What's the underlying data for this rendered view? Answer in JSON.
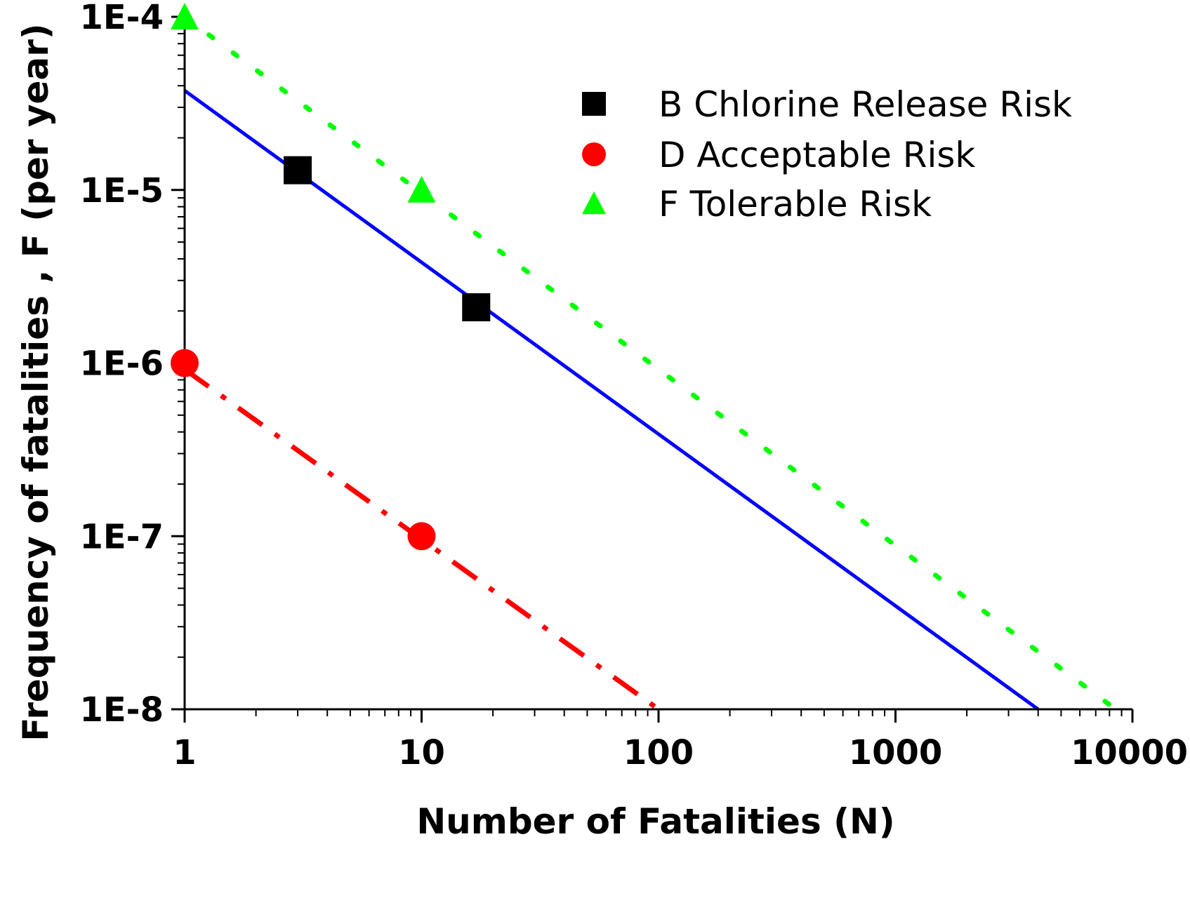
{
  "chart_data": {
    "type": "scatter",
    "x_scale": "log",
    "y_scale": "log",
    "xlabel": "Number of Fatalities (N)",
    "ylabel": "Frequency of fatalities , F (per year)",
    "xlim": [
      1,
      10000
    ],
    "ylim": [
      1e-08,
      0.0001
    ],
    "x_ticks": [
      {
        "value": 1,
        "label": "1"
      },
      {
        "value": 10,
        "label": "10"
      },
      {
        "value": 100,
        "label": "100"
      },
      {
        "value": 1000,
        "label": "1000"
      },
      {
        "value": 10000,
        "label": "10000"
      }
    ],
    "y_ticks": [
      {
        "value": 0.0001,
        "label": "1E-4"
      },
      {
        "value": 1e-05,
        "label": "1E-5"
      },
      {
        "value": 1e-06,
        "label": "1E-6"
      },
      {
        "value": 1e-07,
        "label": "1E-7"
      },
      {
        "value": 1e-08,
        "label": "1E-8"
      }
    ],
    "grid": false,
    "legend_position": "top-right",
    "series": [
      {
        "name": "B Chlorine Release Risk",
        "marker": "square",
        "color": "#000000",
        "points": [
          {
            "x": 3,
            "y": 1.3e-05
          },
          {
            "x": 17,
            "y": 2.1e-06
          }
        ],
        "fit_line": {
          "style": "solid",
          "color": "#0000ff",
          "x": [
            1,
            4000
          ],
          "y": [
            3.75e-05,
            1e-08
          ]
        }
      },
      {
        "name": "D Acceptable Risk",
        "marker": "circle",
        "color": "#ff0000",
        "points": [
          {
            "x": 1,
            "y": 1e-06
          },
          {
            "x": 10,
            "y": 1e-07
          }
        ],
        "fit_line": {
          "style": "dashdot",
          "color": "#ff0000",
          "x": [
            1,
            100
          ],
          "y": [
            9.2e-07,
            1e-08
          ]
        }
      },
      {
        "name": "F Tolerable Risk",
        "marker": "triangle",
        "color": "#00ff00",
        "points": [
          {
            "x": 1,
            "y": 0.0001
          },
          {
            "x": 10,
            "y": 1e-05
          }
        ],
        "fit_line": {
          "style": "dotted",
          "color": "#00ff00",
          "x": [
            1,
            8500
          ],
          "y": [
            0.0001,
            1e-08
          ]
        }
      }
    ]
  }
}
